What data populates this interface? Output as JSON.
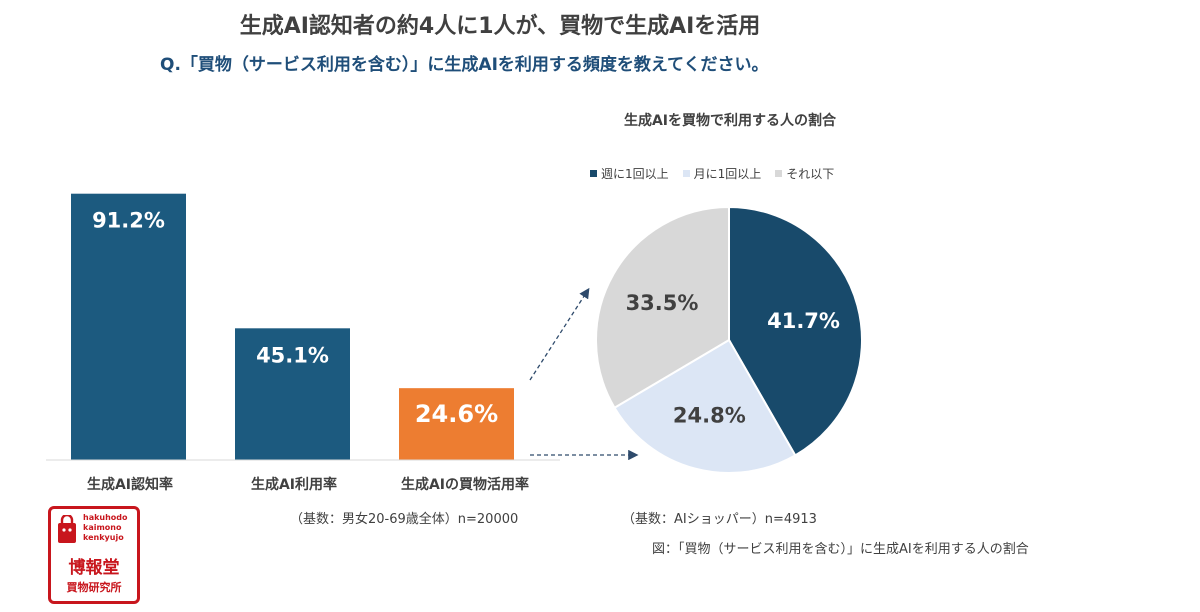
{
  "title": "生成AI認知者の約4人に1人が、買物で生成AIを活用",
  "question": "Q.「買物（サービス利用を含む）」に生成AIを利用する頻度を教えてください。",
  "colors": {
    "bar": "#1c5a7f",
    "bar_highlight": "#ed7d31",
    "pie_weekly": "#184a6b",
    "pie_monthly": "#dce6f5",
    "pie_less": "#d8d8d8",
    "arrow": "#2e4a6b"
  },
  "chart_data": [
    {
      "type": "bar",
      "categories": [
        "生成AI認知率",
        "生成AI利用率",
        "生成AIの買物活用率"
      ],
      "values": [
        91.2,
        45.1,
        24.6
      ],
      "value_labels": [
        "91.2%",
        "45.1%",
        "24.6%"
      ],
      "ylim": [
        0,
        100
      ],
      "highlight_index": 2,
      "note": "（基数：男女20-69歳全体）n=20000"
    },
    {
      "type": "pie",
      "title": "生成AIを買物で利用する人の割合",
      "labels": [
        "週に1回以上",
        "月に1回以上",
        "それ以下"
      ],
      "values": [
        41.7,
        24.8,
        33.5
      ],
      "value_labels": [
        "41.7%",
        "24.8%",
        "33.5%"
      ],
      "legend_position": "top",
      "note": "（基数：AIショッパー）n=4913"
    }
  ],
  "figure_caption": "図：「買物（サービス利用を含む）」に生成AIを利用する人の割合",
  "logo": {
    "line1": "hakuhodo",
    "line2": "kaimono",
    "line3": "kenkyujo",
    "name": "博報堂",
    "sub": "買物研究所"
  }
}
